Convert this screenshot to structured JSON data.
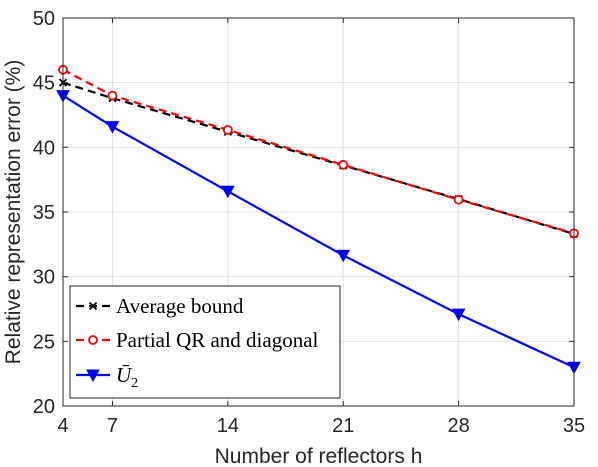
{
  "chart_data": {
    "type": "line",
    "xlabel": "Number of reflectors h",
    "ylabel": "Relative representation error (%)",
    "x": [
      4,
      7,
      14,
      21,
      28,
      35
    ],
    "xlim": [
      4,
      35
    ],
    "ylim": [
      20,
      50
    ],
    "xticks": [
      "4",
      "7",
      "14",
      "21",
      "28",
      "35"
    ],
    "yticks": [
      "20",
      "25",
      "30",
      "35",
      "40",
      "45",
      "50"
    ],
    "grid": true,
    "legend_position": "bottom-left",
    "series": [
      {
        "name": "Average bound",
        "values": [
          45.0,
          43.8,
          41.2,
          38.6,
          36.0,
          33.3
        ],
        "color": "#000000",
        "line_style": "dashed",
        "marker": "x"
      },
      {
        "name": "Partial QR and diagonal",
        "values": [
          46.0,
          44.0,
          41.35,
          38.65,
          35.95,
          33.35
        ],
        "color": "#ff0000",
        "line_style": "dashed",
        "marker": "circle"
      },
      {
        "name": "Ū2",
        "name_base": "Ū",
        "name_sub": "2",
        "values": [
          44.0,
          41.6,
          36.6,
          31.65,
          27.1,
          23.0
        ],
        "color": "#0000ff",
        "line_style": "solid",
        "marker": "triangle-down"
      }
    ]
  }
}
